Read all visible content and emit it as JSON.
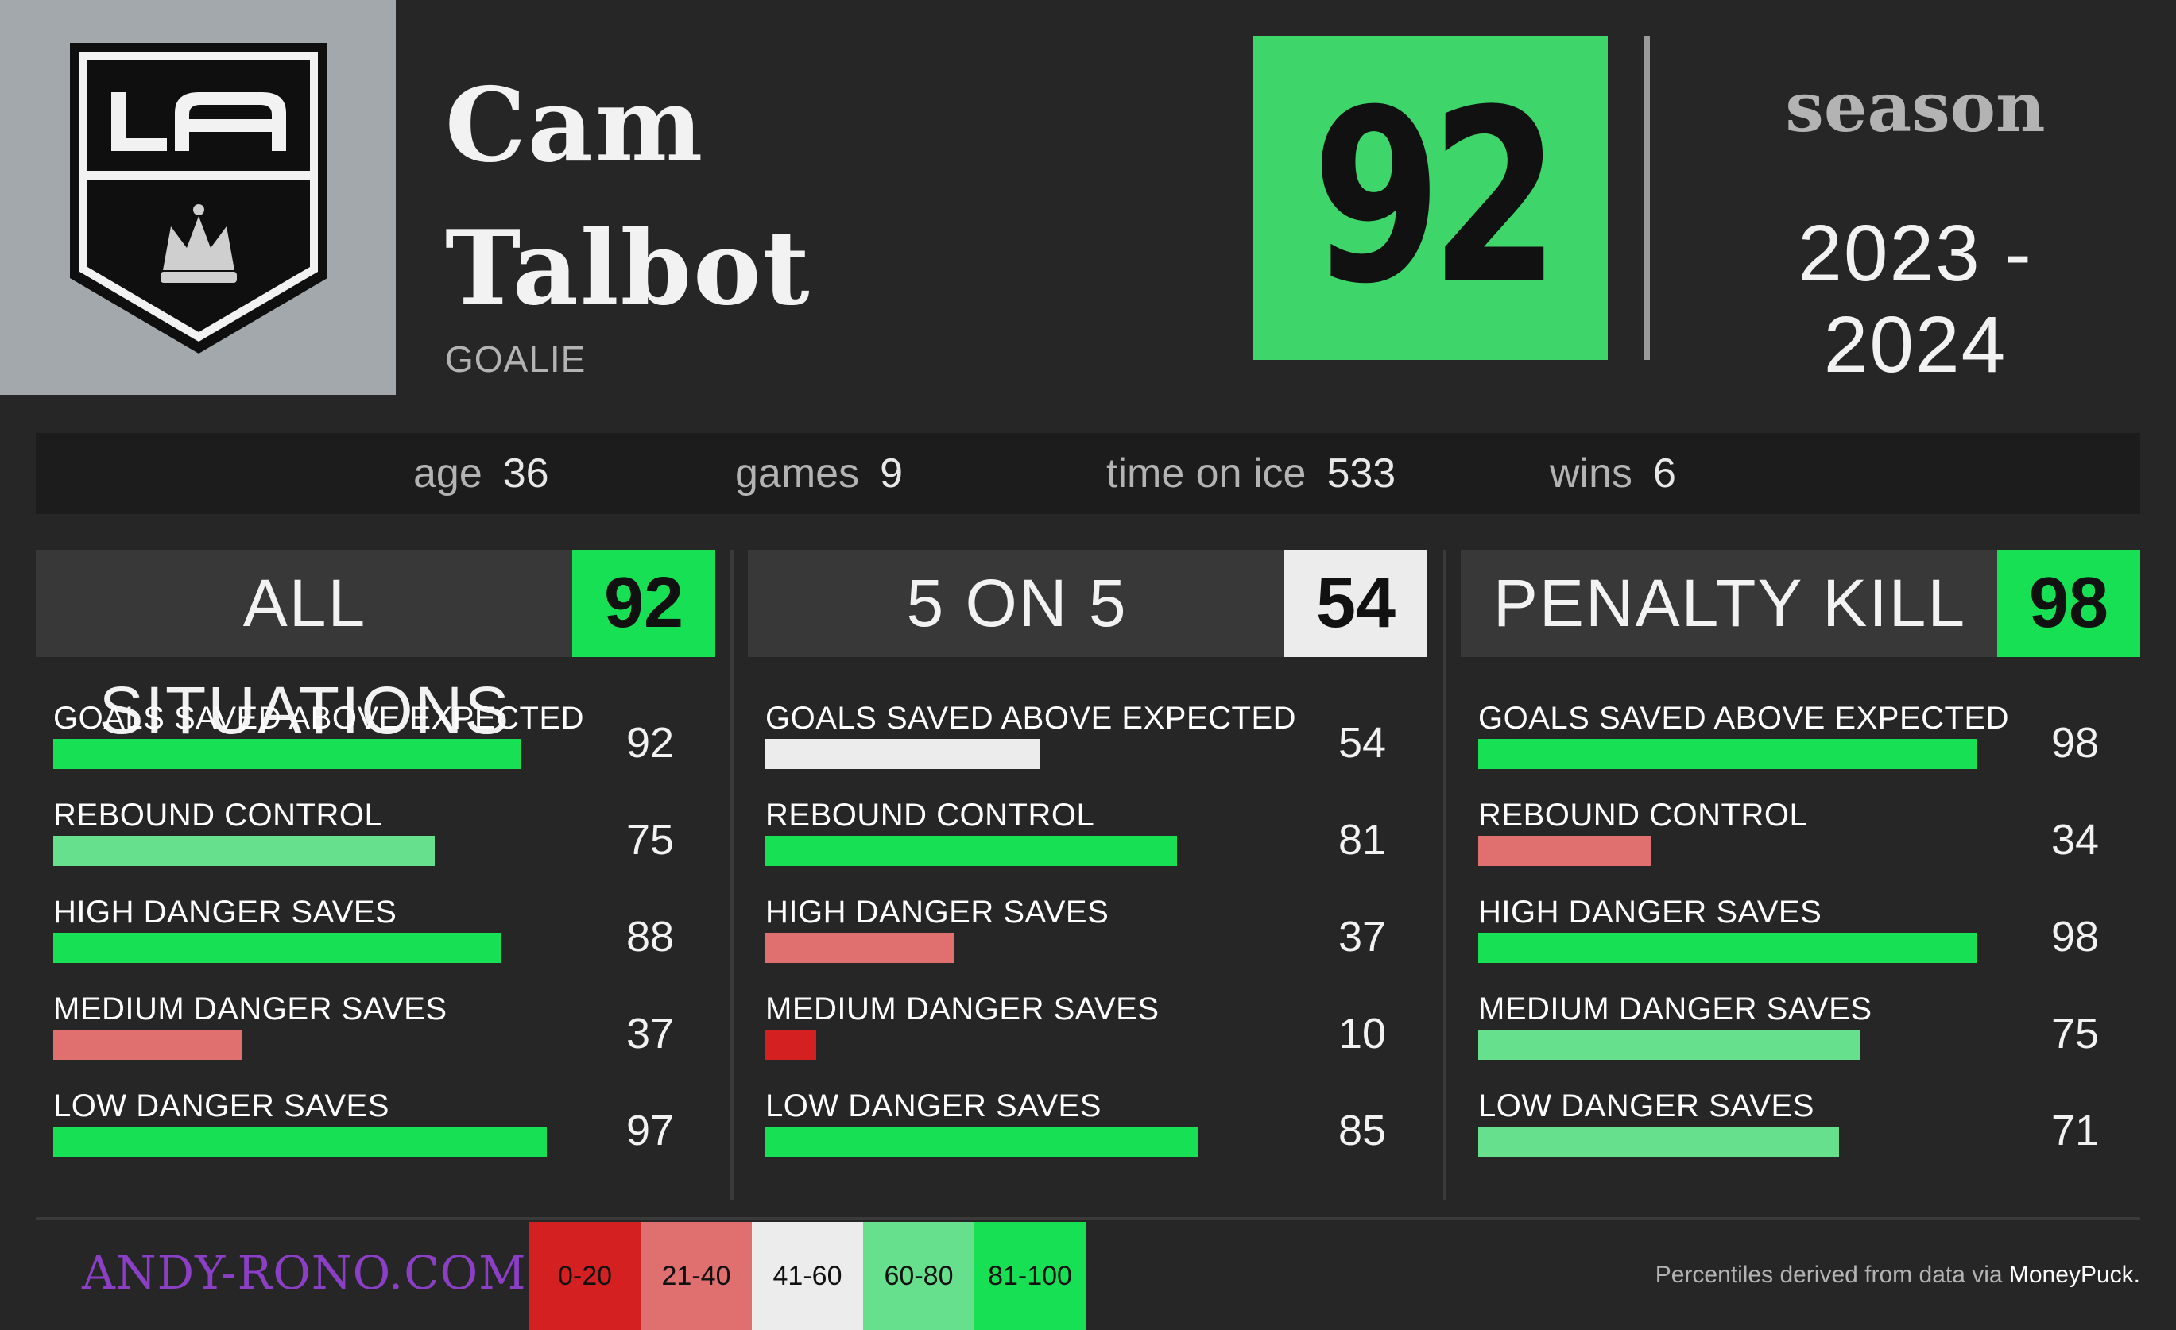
{
  "player": {
    "first_name": "Cam",
    "last_name": "Talbot",
    "position": "GOALIE",
    "team_logo_text": "LA",
    "overall_score": "92",
    "overall_color": "#3ed66a"
  },
  "season": {
    "label": "season",
    "years": "2023 - 2024"
  },
  "stats": [
    {
      "label": "age",
      "value": "36"
    },
    {
      "label": "games",
      "value": "9"
    },
    {
      "label": "time on ice",
      "value": "533"
    },
    {
      "label": "wins",
      "value": "6"
    }
  ],
  "panels": [
    {
      "title": "ALL SITUATIONS",
      "score": "92",
      "score_color": "#18e055",
      "metrics": [
        {
          "label": "GOALS SAVED ABOVE EXPECTED",
          "value": "92",
          "percentile": 92,
          "color": "#18e055"
        },
        {
          "label": "REBOUND CONTROL",
          "value": "75",
          "percentile": 75,
          "color": "#66e08c"
        },
        {
          "label": "HIGH DANGER SAVES",
          "value": "88",
          "percentile": 88,
          "color": "#18e055"
        },
        {
          "label": "MEDIUM DANGER SAVES",
          "value": "37",
          "percentile": 37,
          "color": "#e07070"
        },
        {
          "label": "LOW DANGER SAVES",
          "value": "97",
          "percentile": 97,
          "color": "#18e055"
        }
      ]
    },
    {
      "title": "5 ON 5",
      "score": "54",
      "score_color": "#ececec",
      "metrics": [
        {
          "label": "GOALS SAVED ABOVE EXPECTED",
          "value": "54",
          "percentile": 54,
          "color": "#ececec"
        },
        {
          "label": "REBOUND CONTROL",
          "value": "81",
          "percentile": 81,
          "color": "#18e055"
        },
        {
          "label": "HIGH DANGER SAVES",
          "value": "37",
          "percentile": 37,
          "color": "#e07070"
        },
        {
          "label": "MEDIUM DANGER SAVES",
          "value": "10",
          "percentile": 10,
          "color": "#d42020"
        },
        {
          "label": "LOW DANGER SAVES",
          "value": "85",
          "percentile": 85,
          "color": "#18e055"
        }
      ]
    },
    {
      "title": "PENALTY KILL",
      "score": "98",
      "score_color": "#18e055",
      "metrics": [
        {
          "label": "GOALS SAVED ABOVE EXPECTED",
          "value": "98",
          "percentile": 98,
          "color": "#18e055"
        },
        {
          "label": "REBOUND CONTROL",
          "value": "34",
          "percentile": 34,
          "color": "#e07070"
        },
        {
          "label": "HIGH DANGER SAVES",
          "value": "98",
          "percentile": 98,
          "color": "#18e055"
        },
        {
          "label": "MEDIUM DANGER SAVES",
          "value": "75",
          "percentile": 75,
          "color": "#66e08c"
        },
        {
          "label": "LOW DANGER SAVES",
          "value": "71",
          "percentile": 71,
          "color": "#66e08c"
        }
      ]
    }
  ],
  "footer": {
    "site": "ANDY-RONO.COM",
    "site_color": "#8a3fc4",
    "legend": [
      {
        "label": "0-20",
        "color": "#d42020"
      },
      {
        "label": "21-40",
        "color": "#e07070"
      },
      {
        "label": "41-60",
        "color": "#ececec"
      },
      {
        "label": "60-80",
        "color": "#66e08c"
      },
      {
        "label": "81-100",
        "color": "#18e055"
      }
    ],
    "credit_prefix": "Percentiles derived from data via ",
    "credit_source": "MoneyPuck."
  }
}
